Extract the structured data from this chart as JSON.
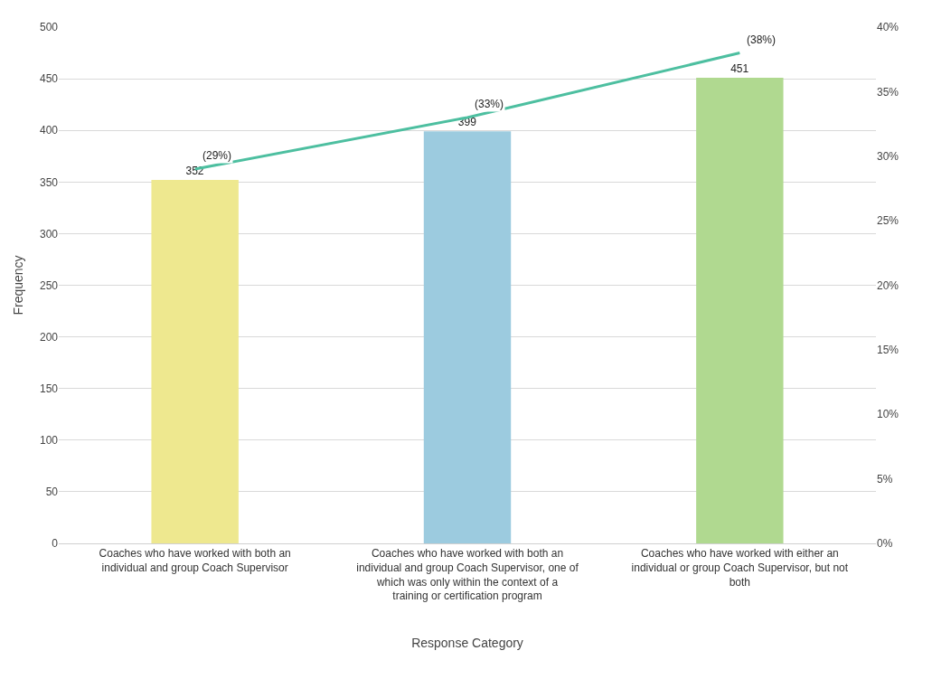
{
  "chart_data": {
    "type": "bar",
    "xlabel": "Response Category",
    "ylabel": "Frequency",
    "categories": [
      "Coaches who have worked with both an individual and group Coach Supervisor",
      "Coaches who have worked with both an individual and group Coach Supervisor, one of which was only within the context of a training or certification program",
      "Coaches who have worked with either an individual or group Coach Supervisor, but not both"
    ],
    "series": [
      {
        "colors": [
          "#eee88f",
          "#9ccbdf",
          "#b0d990"
        ],
        "values": [
          352,
          399,
          451
        ],
        "value_labels": [
          "352",
          "399",
          "451"
        ]
      },
      {
        "type": "line",
        "axis": "y2",
        "color": "#4dbfa0",
        "values": [
          29,
          33,
          38
        ],
        "value_labels": [
          "(29%)",
          "(33%)",
          "(38%)"
        ],
        "marker": "none",
        "line_style": "solid"
      }
    ],
    "ylim": [
      0,
      500
    ],
    "yticks": [
      0,
      50,
      100,
      150,
      200,
      250,
      300,
      350,
      400,
      450,
      500
    ],
    "y2lim": [
      0,
      40
    ],
    "y2ticks": [
      {
        "value": 0,
        "label": "0%"
      },
      {
        "value": 5,
        "label": "5%"
      },
      {
        "value": 10,
        "label": "10%"
      },
      {
        "value": 15,
        "label": "15%"
      },
      {
        "value": 20,
        "label": "20%"
      },
      {
        "value": 25,
        "label": "25%"
      },
      {
        "value": 30,
        "label": "30%"
      },
      {
        "value": 35,
        "label": "35%"
      },
      {
        "value": 40,
        "label": "40%"
      }
    ],
    "grid": "y"
  }
}
